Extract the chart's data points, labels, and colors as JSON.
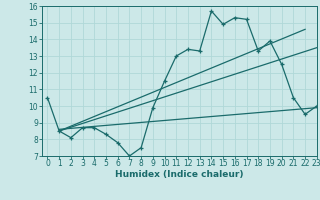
{
  "main_x": [
    0,
    1,
    2,
    3,
    4,
    5,
    6,
    7,
    8,
    9,
    10,
    11,
    12,
    13,
    14,
    15,
    16,
    17,
    18,
    19,
    20,
    21,
    22,
    23
  ],
  "main_y": [
    10.5,
    8.5,
    8.1,
    8.7,
    8.7,
    8.3,
    7.8,
    7.0,
    7.5,
    9.9,
    11.5,
    13.0,
    13.4,
    13.3,
    15.7,
    14.9,
    15.3,
    15.2,
    13.3,
    13.9,
    12.5,
    10.5,
    9.5,
    10.0
  ],
  "line1_x": [
    1,
    22
  ],
  "line1_y": [
    8.5,
    14.6
  ],
  "line2_x": [
    1,
    23
  ],
  "line2_y": [
    8.5,
    13.5
  ],
  "line3_x": [
    1,
    23
  ],
  "line3_y": [
    8.6,
    9.9
  ],
  "color": "#1a6b6b",
  "bg_color": "#cce8e8",
  "grid_color": "#b0d8d8",
  "xlabel": "Humidex (Indice chaleur)",
  "ylim": [
    7,
    16
  ],
  "xlim": [
    -0.5,
    23
  ],
  "yticks": [
    7,
    8,
    9,
    10,
    11,
    12,
    13,
    14,
    15,
    16
  ],
  "xticks": [
    0,
    1,
    2,
    3,
    4,
    5,
    6,
    7,
    8,
    9,
    10,
    11,
    12,
    13,
    14,
    15,
    16,
    17,
    18,
    19,
    20,
    21,
    22,
    23
  ]
}
